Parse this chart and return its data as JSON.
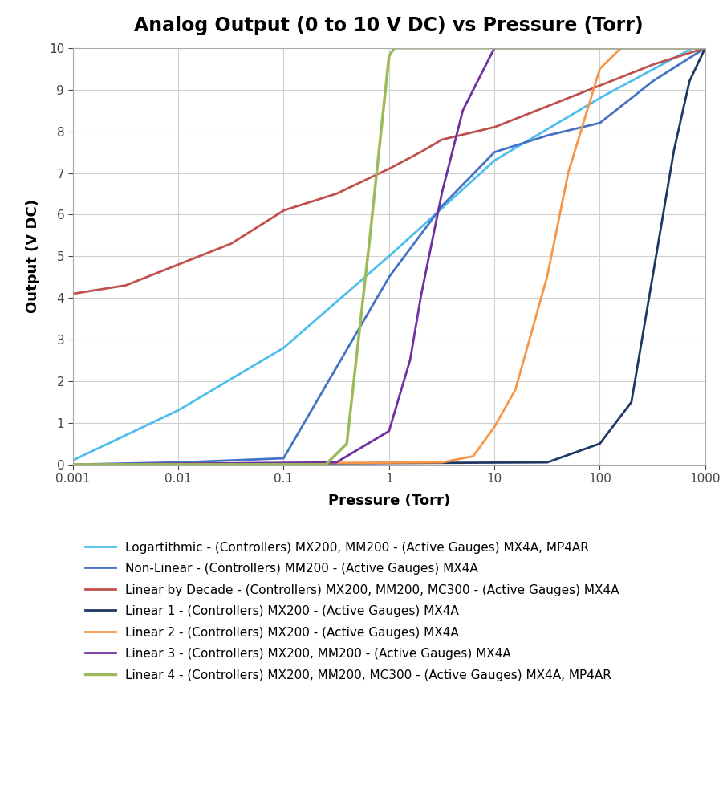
{
  "title": "Analog Output (0 to 10 V DC) vs Pressure (Torr)",
  "xlabel": "Pressure (Torr)",
  "ylabel": "Output (V DC)",
  "ylim": [
    0,
    10
  ],
  "background_color": "#ffffff",
  "grid_color": "#d0d0d0",
  "title_fontsize": 17,
  "axis_label_fontsize": 13,
  "legend_fontsize": 11,
  "series": [
    {
      "name": "Logartithmic - (Controllers) MX200, MM200 - (Active Gauges) MX4A, MP4AR",
      "color": "#4DBEEE",
      "linewidth": 2.0,
      "type": "logarithmic"
    },
    {
      "name": "Non-Linear - (Controllers) MM200 - (Active Gauges) MX4A",
      "color": "#4472C4",
      "linewidth": 2.0,
      "type": "nonlinear"
    },
    {
      "name": "Linear by Decade - (Controllers) MX200, MM200, MC300 - (Active Gauges) MX4A",
      "color": "#C0504D",
      "linewidth": 2.0,
      "type": "linear_by_decade"
    },
    {
      "name": "Linear 1 - (Controllers) MX200 - (Active Gauges) MX4A",
      "color": "#1F3864",
      "linewidth": 2.0,
      "type": "linear1"
    },
    {
      "name": "Linear 2 - (Controllers) MX200 - (Active Gauges) MX4A",
      "color": "#F79646",
      "linewidth": 2.0,
      "type": "linear2"
    },
    {
      "name": "Linear 3 - (Controllers) MX200, MM200 - (Active Gauges) MX4A",
      "color": "#7030A0",
      "linewidth": 2.0,
      "type": "linear3"
    },
    {
      "name": "Linear 4 - (Controllers) MX200, MM200, MC300 - (Active Gauges) MX4A, MP4AR",
      "color": "#9BBB59",
      "linewidth": 2.5,
      "type": "linear4"
    }
  ]
}
